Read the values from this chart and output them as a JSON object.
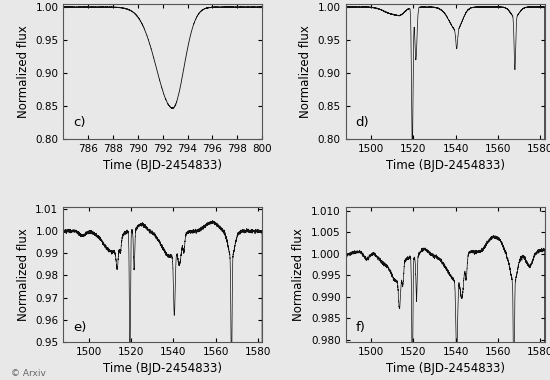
{
  "panel_c": {
    "label": "c)",
    "xlim": [
      784,
      800
    ],
    "ylim": [
      0.8,
      1.005
    ],
    "xticks": [
      786,
      788,
      790,
      792,
      794,
      796,
      798,
      800
    ],
    "yticks": [
      0.8,
      0.85,
      0.9,
      0.95,
      1.0
    ],
    "xlabel": "Time (BJD-2454833)",
    "ylabel": "Normalized flux"
  },
  "panel_d": {
    "label": "d)",
    "xlim": [
      1488,
      1582
    ],
    "ylim": [
      0.8,
      1.005
    ],
    "xticks": [
      1500,
      1520,
      1540,
      1560,
      1580
    ],
    "yticks": [
      0.8,
      0.85,
      0.9,
      0.95,
      1.0
    ],
    "xlabel": "Time (BJD-2454833)",
    "ylabel": "Normalized flux"
  },
  "panel_e": {
    "label": "e)",
    "xlim": [
      1488,
      1582
    ],
    "ylim": [
      0.95,
      1.011
    ],
    "xticks": [
      1500,
      1520,
      1540,
      1560,
      1580
    ],
    "yticks": [
      0.95,
      0.96,
      0.97,
      0.98,
      0.99,
      1.0,
      1.01
    ],
    "xlabel": "Time (BJD-2454833)",
    "ylabel": "Normalized flux"
  },
  "panel_f": {
    "label": "f)",
    "xlim": [
      1488,
      1582
    ],
    "ylim": [
      0.9795,
      1.011
    ],
    "xticks": [
      1500,
      1520,
      1540,
      1560,
      1580
    ],
    "yticks": [
      0.98,
      0.985,
      0.99,
      0.995,
      1.0,
      1.005,
      1.01
    ],
    "xlabel": "Time (BJD-2454833)",
    "ylabel": "Normalized flux"
  },
  "line_color": "#111111",
  "bg_color": "#e8e8e8",
  "label_fontsize": 8.5,
  "tick_fontsize": 7.5,
  "arxiv_label": "© Arxiv"
}
